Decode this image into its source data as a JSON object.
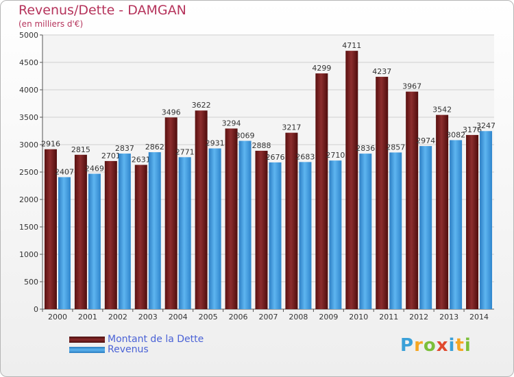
{
  "chart_data": {
    "type": "bar",
    "title": "Revenus/Dette - DAMGAN",
    "subtitle": "(en milliers d'€)",
    "categories": [
      "2000",
      "2001",
      "2002",
      "2003",
      "2004",
      "2005",
      "2006",
      "2007",
      "2008",
      "2009",
      "2010",
      "2011",
      "2012",
      "2013",
      "2014"
    ],
    "series": [
      {
        "name": "Montant de la Dette",
        "color": "#7a1b1b",
        "values": [
          2916,
          2815,
          2701,
          2631,
          3496,
          3622,
          3294,
          2888,
          3217,
          4299,
          4711,
          4237,
          3967,
          3542,
          3176
        ],
        "labels": [
          "2916",
          "2815",
          "2701",
          "2631",
          "3496",
          "3622",
          "3294",
          "2888",
          "3217",
          "4299",
          "4711",
          "4237",
          "3967",
          "3542",
          "3176"
        ]
      },
      {
        "name": "Revenus",
        "color": "#3f9ae0",
        "values": [
          2407,
          2469,
          2837,
          2862,
          2771,
          2931,
          3069,
          2676,
          2683,
          2710,
          2836,
          2857,
          2974,
          3082,
          3247
        ],
        "labels": [
          "2407",
          "2469",
          "2837",
          "2862",
          "2771",
          "2931",
          "3069",
          "2676",
          "2683",
          "2710",
          "2836",
          "2857",
          "2974",
          "3082",
          "3247"
        ]
      }
    ],
    "ylim": [
      0,
      5000
    ],
    "yticks": [
      0,
      500,
      1000,
      1500,
      2000,
      2500,
      3000,
      3500,
      4000,
      4500,
      5000
    ],
    "grid": true,
    "legend": "bottom-left"
  },
  "legend": [
    {
      "label": "Montant de la Dette",
      "color": "#7a1b1b"
    },
    {
      "label": "Revenus",
      "color": "#3f9ae0"
    }
  ],
  "logo": {
    "text": "Proxiti",
    "letters": [
      "P",
      "r",
      "o",
      "x",
      "i",
      "t",
      "i"
    ],
    "colors": [
      "#3aa0d8",
      "#f5a623",
      "#7bbf3a",
      "#e04a2f",
      "#3aa0d8",
      "#f5a623",
      "#7bbf3a"
    ]
  }
}
